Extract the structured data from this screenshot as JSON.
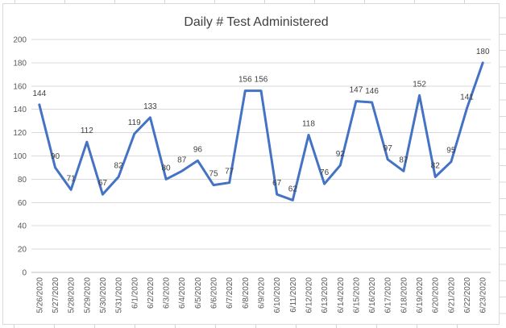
{
  "chart_data": {
    "type": "line",
    "title": "Daily # Test Administered",
    "categories": [
      "5/26/2020",
      "5/27/2020",
      "5/28/2020",
      "5/29/2020",
      "5/30/2020",
      "5/31/2020",
      "6/1/2020",
      "6/2/2020",
      "6/3/2020",
      "6/4/2020",
      "6/5/2020",
      "6/6/2020",
      "6/7/2020",
      "6/8/2020",
      "6/9/2020",
      "6/10/2020",
      "6/11/2020",
      "6/12/2020",
      "6/13/2020",
      "6/14/2020",
      "6/15/2020",
      "6/16/2020",
      "6/17/2020",
      "6/18/2020",
      "6/19/2020",
      "6/20/2020",
      "6/21/2020",
      "6/22/2020",
      "6/23/2020"
    ],
    "values": [
      144,
      90,
      71,
      112,
      67,
      82,
      119,
      133,
      80,
      87,
      96,
      75,
      77,
      156,
      156,
      67,
      62,
      118,
      76,
      92,
      147,
      146,
      97,
      87,
      152,
      82,
      95,
      141,
      180
    ],
    "xlabel": "",
    "ylabel": "",
    "ylim": [
      0,
      200
    ],
    "ytick_interval": 20,
    "grid": true,
    "legend": "none",
    "data_labels": "above",
    "x_label_rotation": -90,
    "colors": {
      "line": "#4472C4",
      "gridline": "#d9d9d9",
      "axis_line": "#bfbfbf",
      "title_text": "#404040",
      "data_label_text": "#404040",
      "axis_tick_text": "#595959",
      "chart_border": "#d9d9d9",
      "sheet_gridline": "#cfd4da"
    }
  }
}
